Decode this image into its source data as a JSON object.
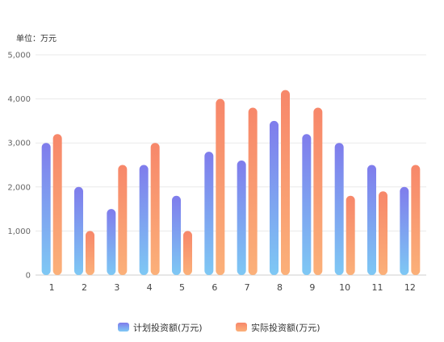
{
  "chart_data": {
    "type": "bar",
    "unit_label": "单位：万元",
    "categories": [
      "1",
      "2",
      "3",
      "4",
      "5",
      "6",
      "7",
      "8",
      "9",
      "10",
      "11",
      "12"
    ],
    "series": [
      {
        "name": "计划投资额(万元)",
        "values": [
          3000,
          2000,
          1500,
          2500,
          1800,
          2800,
          2600,
          3500,
          3200,
          3000,
          2500,
          2000
        ],
        "color_top": "#7f7cec",
        "color_bottom": "#7ec8f4"
      },
      {
        "name": "实际投资额(万元)",
        "values": [
          3200,
          1000,
          2500,
          3000,
          1000,
          4000,
          3800,
          4200,
          3800,
          1800,
          1900,
          2500
        ],
        "color_top": "#f7876a",
        "color_bottom": "#fbb079"
      }
    ],
    "ylim": [
      0,
      5000
    ],
    "yticks": [
      "0",
      "1,000",
      "2,000",
      "3,000",
      "4,000",
      "5,000"
    ],
    "grid": true,
    "legend_position": "bottom-center"
  }
}
